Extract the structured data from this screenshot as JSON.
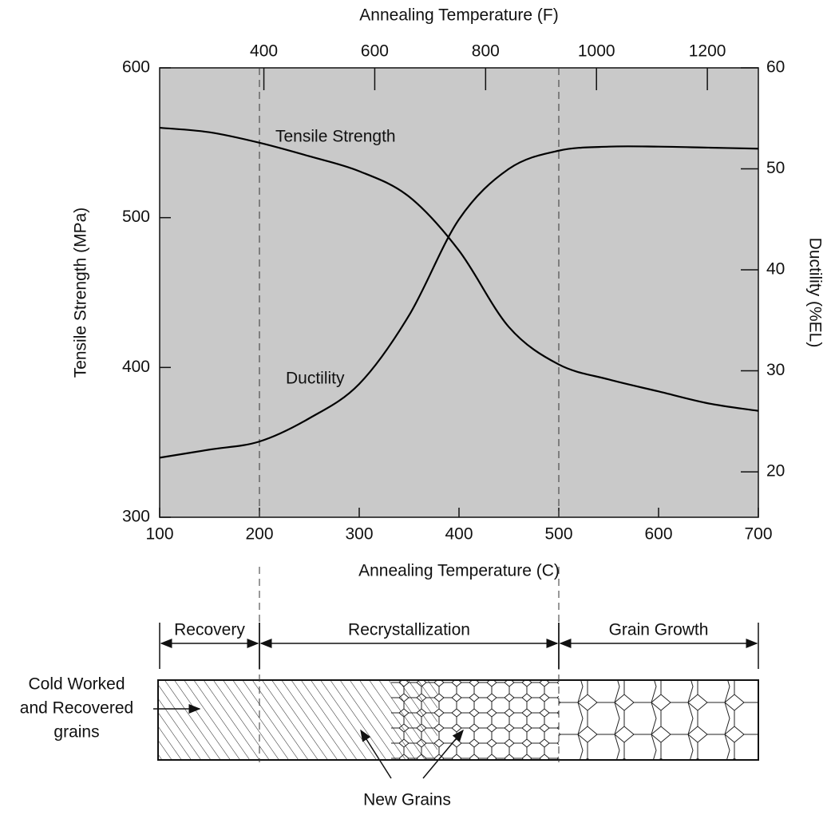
{
  "chart_data": {
    "type": "line",
    "x2label": "Annealing Temperature (F)",
    "xlabel": "Annealing Temperature (C)",
    "ylabel": "Tensile Strength (MPa)",
    "y2label": "Ductility (%EL)",
    "x": [
      100,
      150,
      200,
      250,
      300,
      350,
      400,
      450,
      500,
      550,
      600,
      650,
      700
    ],
    "series": [
      {
        "name": "Tensile Strength",
        "color": "#000000",
        "axis": "y",
        "values": [
          560,
          557,
          550,
          541,
          531,
          514,
          478,
          427,
          402,
          392,
          384,
          376,
          371
        ]
      },
      {
        "name": "Ductility",
        "color": "#000000",
        "axis": "y2",
        "values": [
          21.4,
          22.2,
          23,
          25.3,
          28.7,
          35.5,
          45,
          50,
          51.8,
          52.2,
          52.2,
          52.1,
          52
        ]
      }
    ],
    "xlim": [
      100,
      700
    ],
    "xticks": [
      100,
      200,
      300,
      400,
      500,
      600,
      700
    ],
    "x2lim": [
      212,
      1292
    ],
    "x2ticks": [
      400,
      600,
      800,
      1000,
      1200
    ],
    "ylim": [
      300,
      600
    ],
    "yticks": [
      300,
      400,
      500,
      600
    ],
    "y2lim": [
      15.5,
      60
    ],
    "y2ticks": [
      20,
      30,
      40,
      50,
      60
    ],
    "vlines": [
      200,
      500
    ],
    "stages": [
      {
        "label": "Recovery",
        "range": [
          100,
          200
        ]
      },
      {
        "label": "Recrystallization",
        "range": [
          200,
          500
        ]
      },
      {
        "label": "Grain Growth",
        "range": [
          500,
          700
        ]
      }
    ],
    "microstructure_labels": {
      "cold_worked": [
        "Cold Worked",
        "and Recovered",
        "grains"
      ],
      "new_grains": "New Grains"
    }
  }
}
